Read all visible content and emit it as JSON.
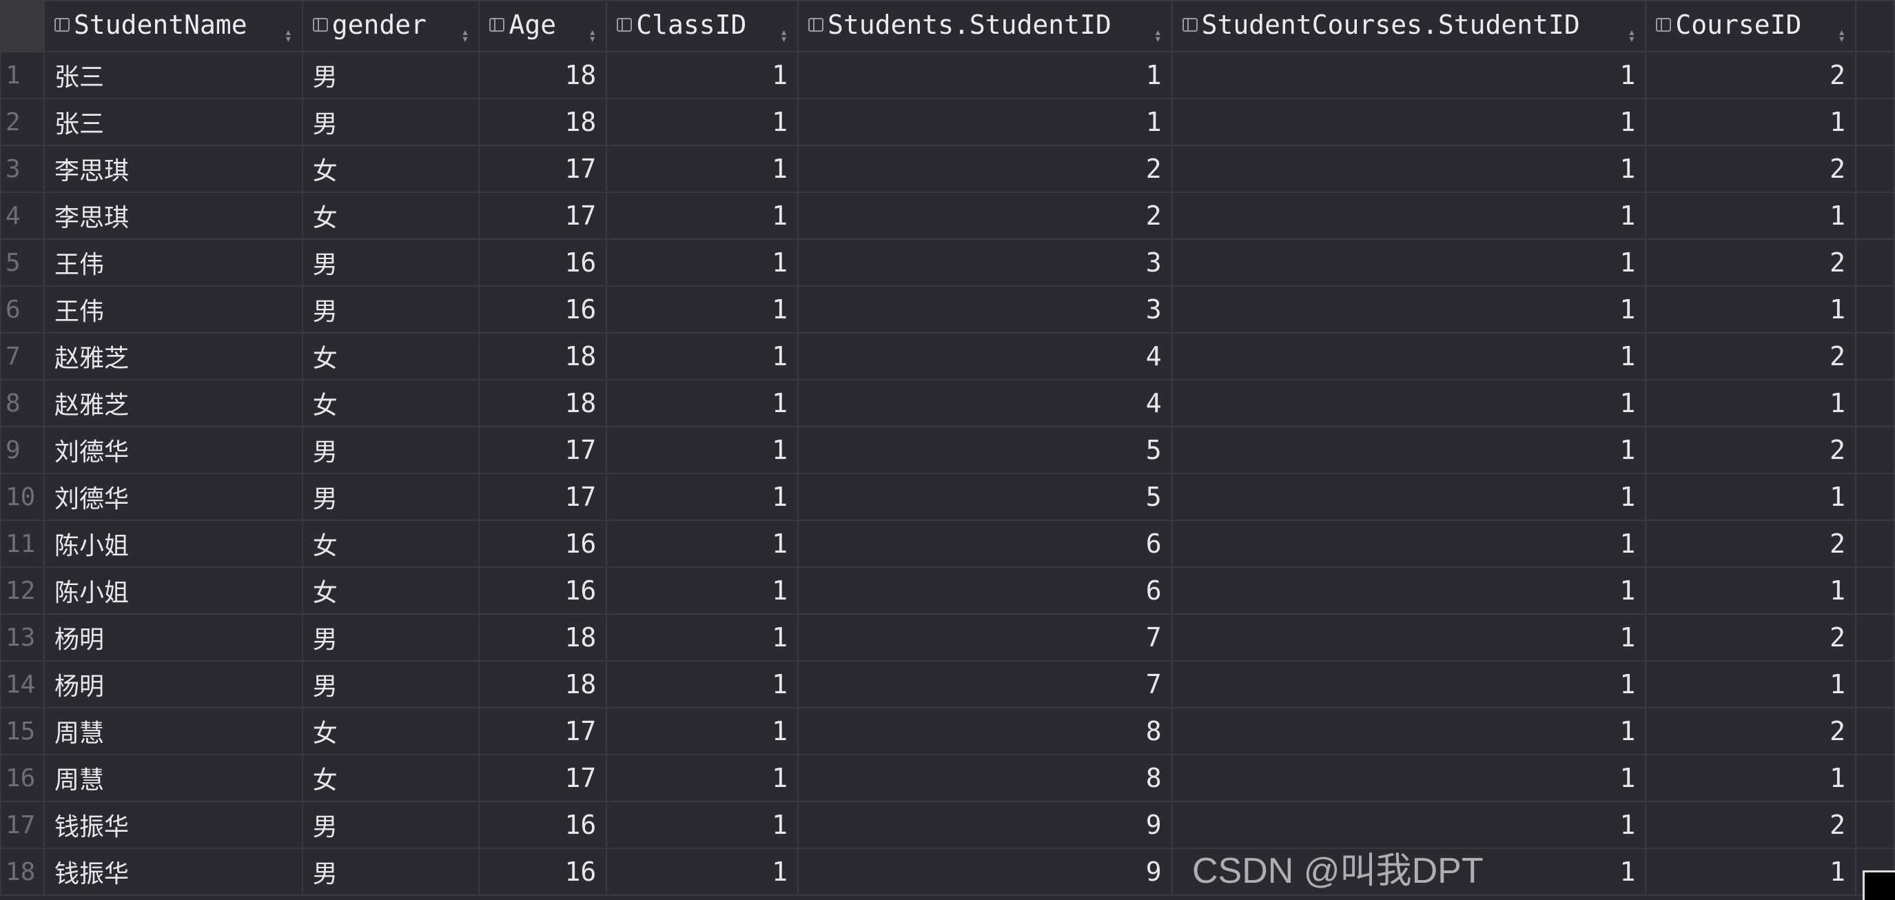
{
  "columns": [
    "StudentName",
    "gender",
    "Age",
    "ClassID",
    "Students.StudentID",
    "StudentCourses.StudentID",
    "CourseID"
  ],
  "rows": [
    {
      "n": "1",
      "name": "张三",
      "gender": "男",
      "age": "18",
      "classid": "1",
      "sid": "1",
      "scsid": "1",
      "cid": "2"
    },
    {
      "n": "2",
      "name": "张三",
      "gender": "男",
      "age": "18",
      "classid": "1",
      "sid": "1",
      "scsid": "1",
      "cid": "1"
    },
    {
      "n": "3",
      "name": "李思琪",
      "gender": "女",
      "age": "17",
      "classid": "1",
      "sid": "2",
      "scsid": "1",
      "cid": "2"
    },
    {
      "n": "4",
      "name": "李思琪",
      "gender": "女",
      "age": "17",
      "classid": "1",
      "sid": "2",
      "scsid": "1",
      "cid": "1"
    },
    {
      "n": "5",
      "name": "王伟",
      "gender": "男",
      "age": "16",
      "classid": "1",
      "sid": "3",
      "scsid": "1",
      "cid": "2"
    },
    {
      "n": "6",
      "name": "王伟",
      "gender": "男",
      "age": "16",
      "classid": "1",
      "sid": "3",
      "scsid": "1",
      "cid": "1"
    },
    {
      "n": "7",
      "name": "赵雅芝",
      "gender": "女",
      "age": "18",
      "classid": "1",
      "sid": "4",
      "scsid": "1",
      "cid": "2"
    },
    {
      "n": "8",
      "name": "赵雅芝",
      "gender": "女",
      "age": "18",
      "classid": "1",
      "sid": "4",
      "scsid": "1",
      "cid": "1"
    },
    {
      "n": "9",
      "name": "刘德华",
      "gender": "男",
      "age": "17",
      "classid": "1",
      "sid": "5",
      "scsid": "1",
      "cid": "2"
    },
    {
      "n": "10",
      "name": "刘德华",
      "gender": "男",
      "age": "17",
      "classid": "1",
      "sid": "5",
      "scsid": "1",
      "cid": "1"
    },
    {
      "n": "11",
      "name": "陈小姐",
      "gender": "女",
      "age": "16",
      "classid": "1",
      "sid": "6",
      "scsid": "1",
      "cid": "2"
    },
    {
      "n": "12",
      "name": "陈小姐",
      "gender": "女",
      "age": "16",
      "classid": "1",
      "sid": "6",
      "scsid": "1",
      "cid": "1"
    },
    {
      "n": "13",
      "name": "杨明",
      "gender": "男",
      "age": "18",
      "classid": "1",
      "sid": "7",
      "scsid": "1",
      "cid": "2"
    },
    {
      "n": "14",
      "name": "杨明",
      "gender": "男",
      "age": "18",
      "classid": "1",
      "sid": "7",
      "scsid": "1",
      "cid": "1"
    },
    {
      "n": "15",
      "name": "周慧",
      "gender": "女",
      "age": "17",
      "classid": "1",
      "sid": "8",
      "scsid": "1",
      "cid": "2"
    },
    {
      "n": "16",
      "name": "周慧",
      "gender": "女",
      "age": "17",
      "classid": "1",
      "sid": "8",
      "scsid": "1",
      "cid": "1"
    },
    {
      "n": "17",
      "name": "钱振华",
      "gender": "男",
      "age": "16",
      "classid": "1",
      "sid": "9",
      "scsid": "1",
      "cid": "2"
    },
    {
      "n": "18",
      "name": "钱振华",
      "gender": "男",
      "age": "16",
      "classid": "1",
      "sid": "9",
      "scsid": "1",
      "cid": "1"
    }
  ],
  "icons": {
    "column": "column-icon",
    "sort": "sort-arrows-icon"
  },
  "watermark": "CSDN @叫我DPT"
}
